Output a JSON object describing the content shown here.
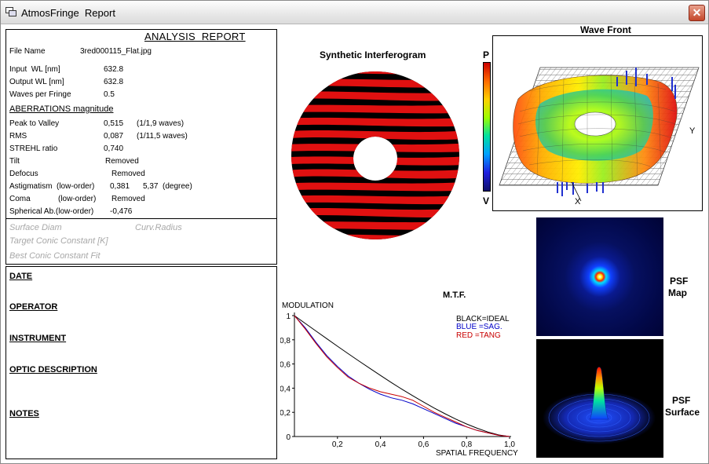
{
  "window": {
    "title": "AtmosFringe  Report"
  },
  "report": {
    "title": "ANALYSIS  REPORT",
    "file_name_label": "File Name",
    "file_name": "3red000115_Flat.jpg",
    "input_wl_label": "Input  WL [nm]",
    "input_wl": "632.8",
    "output_wl_label": "Output WL [nm]",
    "output_wl": "632.8",
    "waves_label": "Waves per Fringe",
    "waves": "0.5",
    "aberrations_heading": "ABERRATIONS magnitude",
    "ptv_label": "Peak to Valley",
    "ptv": "0,515",
    "ptv_waves": "(1/1,9 waves)",
    "rms_label": "RMS",
    "rms": "0,087",
    "rms_waves": "(1/11,5 waves)",
    "strehl_label": "STREHL ratio",
    "strehl": "0,740",
    "tilt_label": "Tilt",
    "tilt": "Removed",
    "defocus_label": "Defocus",
    "defocus": "Removed",
    "astig_label": "Astigmatism  (low-order)",
    "astig": "0,381",
    "astig_deg": "5,37  (degree)",
    "coma_label": "Coma",
    "coma_order": "(low-order)",
    "coma": "Removed",
    "spherical_label": "Spherical Ab.(low-order)",
    "spherical": "-0,476",
    "surface_diam": "Surface Diam",
    "curv_radius": "Curv.Radius",
    "target_conic": "Target Conic Constant [K]",
    "best_conic": "Best Conic Constant Fit"
  },
  "info": {
    "date": "DATE",
    "operator": "OPERATOR",
    "instrument": "INSTRUMENT",
    "optic": "OPTIC DESCRIPTION",
    "notes": "NOTES"
  },
  "interferogram": {
    "title": "Synthetic Interferogram"
  },
  "colorbar": {
    "top": "P",
    "bottom": "V"
  },
  "wavefront": {
    "title": "Wave Front",
    "y_label": "Y",
    "x_label": "X"
  },
  "psf_map": {
    "label_line1": "PSF",
    "label_line2": "Map"
  },
  "psf_surface": {
    "label_line1": "PSF",
    "label_line2": "Surface"
  },
  "colors": {
    "fringe": "#e01010",
    "mtf_ideal": "#000000",
    "mtf_sag": "#0000c8",
    "mtf_tang": "#c80000"
  },
  "chart_data": {
    "type": "line",
    "title": "M.T.F.",
    "ylabel": "MODULATION",
    "xlabel": "SPATIAL FREQUENCY",
    "xlim": [
      0,
      1.0
    ],
    "ylim": [
      0,
      1
    ],
    "x_ticks": [
      "0,2",
      "0,4",
      "0,6",
      "0,8",
      "1,0"
    ],
    "y_ticks": [
      "0",
      "0,2",
      "0,4",
      "0,6",
      "0,8",
      "1"
    ],
    "legend": [
      "BLACK=IDEAL",
      "BLUE  =SAG.",
      "RED    =TANG"
    ],
    "x": [
      0,
      0.05,
      0.1,
      0.15,
      0.2,
      0.25,
      0.3,
      0.35,
      0.4,
      0.45,
      0.5,
      0.55,
      0.6,
      0.65,
      0.7,
      0.75,
      0.8,
      0.85,
      0.9,
      0.95,
      1.0
    ],
    "series": [
      {
        "name": "IDEAL",
        "values": [
          1.0,
          0.936,
          0.873,
          0.81,
          0.747,
          0.685,
          0.624,
          0.564,
          0.505,
          0.447,
          0.391,
          0.337,
          0.285,
          0.235,
          0.188,
          0.144,
          0.104,
          0.068,
          0.037,
          0.013,
          0.0
        ]
      },
      {
        "name": "SAG.",
        "values": [
          1.0,
          0.9,
          0.78,
          0.67,
          0.58,
          0.5,
          0.44,
          0.39,
          0.35,
          0.32,
          0.3,
          0.27,
          0.23,
          0.19,
          0.15,
          0.11,
          0.08,
          0.05,
          0.03,
          0.01,
          0.0
        ]
      },
      {
        "name": "TANG",
        "values": [
          1.0,
          0.89,
          0.77,
          0.66,
          0.57,
          0.49,
          0.44,
          0.4,
          0.37,
          0.35,
          0.33,
          0.3,
          0.25,
          0.2,
          0.16,
          0.12,
          0.08,
          0.05,
          0.03,
          0.01,
          0.0
        ]
      }
    ]
  }
}
